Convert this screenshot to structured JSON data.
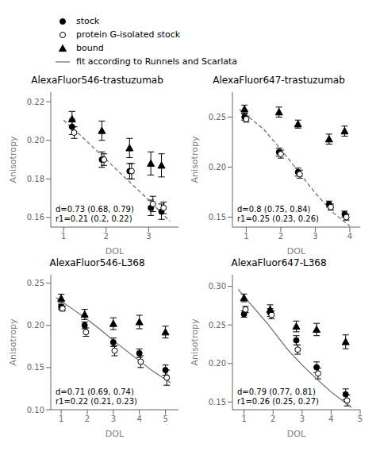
{
  "chart_data": [
    {
      "type": "scatter",
      "title": "AlexaFluor546-trastuzumab",
      "x_label": "DOL",
      "y_label": "Anisotropy",
      "xlim": [
        0.7,
        3.7
      ],
      "ylim": [
        0.155,
        0.225
      ],
      "xticks": [
        1,
        2,
        3
      ],
      "yticks": [
        0.16,
        0.18,
        {
          "value": 0.2,
          "label": "0.20"
        },
        0.22
      ],
      "annotation": "d=0.73 (0.68, 0.79)\nr1=0.21 (0.2, 0.22)",
      "series": [
        {
          "name": "stock",
          "type": "scatter",
          "marker": "circle",
          "color": "black",
          "x": [
            1.2,
            1.9,
            2.55,
            3.05,
            3.3
          ],
          "values": [
            0.207,
            0.19,
            0.184,
            0.165,
            0.163
          ],
          "errors": [
            0.004,
            0.004,
            0.004,
            0.004,
            0.004
          ]
        },
        {
          "name": "protein G-isolated stock",
          "type": "scatter",
          "marker": "open_circle",
          "color": "black",
          "x": [
            1.25,
            1.95,
            2.6,
            3.1,
            3.35
          ],
          "values": [
            0.204,
            0.19,
            0.184,
            0.167,
            0.165
          ],
          "errors": [
            0.003,
            0.003,
            0.004,
            0.004,
            0.003
          ]
        },
        {
          "name": "bound",
          "type": "scatter",
          "marker": "triangle",
          "color": "black",
          "x": [
            1.2,
            1.9,
            2.55,
            3.05,
            3.3
          ],
          "values": [
            0.211,
            0.205,
            0.196,
            0.188,
            0.187
          ],
          "errors": [
            0.004,
            0.005,
            0.005,
            0.006,
            0.006
          ]
        },
        {
          "name": "fit according to Runnels and Scarlata",
          "type": "line",
          "line_style": "dashed",
          "color": "dimgray",
          "x": [
            1.0,
            1.5,
            2.0,
            2.5,
            3.0,
            3.5
          ],
          "values": [
            0.2105,
            0.2005,
            0.19,
            0.1795,
            0.169,
            0.158
          ]
        }
      ]
    },
    {
      "type": "scatter",
      "title": "AlexaFluor647-trastuzumab",
      "x_label": "DOL",
      "y_label": "Anisotropy",
      "xlim": [
        0.6,
        4.3
      ],
      "ylim": [
        0.14,
        0.275
      ],
      "xticks": [
        1,
        2,
        3,
        4
      ],
      "yticks": [
        0.15,
        {
          "value": 0.2,
          "label": "0.20"
        },
        0.25
      ],
      "annotation": "d=0.8 (0.75, 0.84)\nr1=0.25 (0.23, 0.26)",
      "series": [
        {
          "name": "stock",
          "type": "scatter",
          "marker": "circle",
          "color": "black",
          "x": [
            0.95,
            1.95,
            2.5,
            3.4,
            3.85
          ],
          "values": [
            0.25,
            0.215,
            0.195,
            0.163,
            0.153
          ],
          "errors": [
            0.003,
            0.004,
            0.004,
            0.003,
            0.003
          ]
        },
        {
          "name": "protein G-isolated stock",
          "type": "scatter",
          "marker": "open_circle",
          "color": "black",
          "x": [
            1.0,
            2.0,
            2.55,
            3.45,
            3.9
          ],
          "values": [
            0.248,
            0.213,
            0.193,
            0.16,
            0.15
          ],
          "errors": [
            0.003,
            0.004,
            0.004,
            0.003,
            0.003
          ]
        },
        {
          "name": "bound",
          "type": "scatter",
          "marker": "triangle",
          "color": "black",
          "x": [
            0.95,
            1.95,
            2.5,
            3.4,
            3.85
          ],
          "values": [
            0.258,
            0.255,
            0.243,
            0.228,
            0.236
          ],
          "errors": [
            0.004,
            0.005,
            0.004,
            0.005,
            0.005
          ]
        },
        {
          "name": "fit according to Runnels and Scarlata",
          "type": "line",
          "line_style": "dashed",
          "color": "dimgray",
          "x": [
            0.8,
            1.5,
            2.0,
            2.5,
            3.0,
            3.5,
            4.0
          ],
          "values": [
            0.258,
            0.238,
            0.218,
            0.196,
            0.174,
            0.155,
            0.141
          ]
        }
      ]
    },
    {
      "type": "scatter",
      "title": "AlexaFluor546-L368",
      "x_label": "DOL",
      "y_label": "Anisotropy",
      "xlim": [
        0.6,
        5.5
      ],
      "ylim": [
        0.1,
        0.26
      ],
      "xticks": [
        1,
        2,
        3,
        4,
        5
      ],
      "yticks": [
        {
          "value": 0.1,
          "label": "0.10"
        },
        0.15,
        {
          "value": 0.2,
          "label": "0.20"
        },
        0.25
      ],
      "annotation": "d=0.71 (0.69, 0.74)\nr1=0.22 (0.21, 0.23)",
      "series": [
        {
          "name": "stock",
          "type": "scatter",
          "marker": "circle",
          "color": "black",
          "x": [
            1.0,
            1.9,
            3.0,
            4.0,
            5.0
          ],
          "values": [
            0.222,
            0.2,
            0.18,
            0.167,
            0.147
          ],
          "errors": [
            0.003,
            0.004,
            0.005,
            0.005,
            0.006
          ]
        },
        {
          "name": "protein G-isolated stock",
          "type": "scatter",
          "marker": "open_circle",
          "color": "black",
          "x": [
            1.05,
            1.95,
            3.05,
            4.05,
            5.05
          ],
          "values": [
            0.22,
            0.192,
            0.17,
            0.157,
            0.138
          ],
          "errors": [
            0.003,
            0.005,
            0.006,
            0.007,
            0.009
          ]
        },
        {
          "name": "bound",
          "type": "scatter",
          "marker": "triangle",
          "color": "black",
          "x": [
            1.0,
            1.9,
            3.0,
            4.0,
            5.0
          ],
          "values": [
            0.232,
            0.213,
            0.202,
            0.204,
            0.192
          ],
          "errors": [
            0.005,
            0.006,
            0.007,
            0.008,
            0.007
          ]
        },
        {
          "name": "fit according to Runnels and Scarlata",
          "type": "line",
          "line_style": "solid",
          "color": "dimgray",
          "x": [
            0.8,
            1.5,
            2.0,
            2.5,
            3.0,
            3.5,
            4.0,
            4.5,
            5.2
          ],
          "values": [
            0.233,
            0.218,
            0.207,
            0.195,
            0.182,
            0.17,
            0.158,
            0.146,
            0.132
          ]
        }
      ]
    },
    {
      "type": "scatter",
      "title": "AlexaFluor647-L368",
      "x_label": "DOL",
      "y_label": "Anisotropy",
      "xlim": [
        0.6,
        5.0
      ],
      "ylim": [
        0.14,
        0.315
      ],
      "xticks": [
        1,
        2,
        3,
        4,
        5
      ],
      "yticks": [
        0.15,
        {
          "value": 0.2,
          "label": "0.20"
        },
        0.25,
        {
          "value": 0.3,
          "label": "0.30"
        }
      ],
      "annotation": "d=0.79 (0.77, 0.81)\nr1=0.26 (0.25, 0.27)",
      "series": [
        {
          "name": "stock",
          "type": "scatter",
          "marker": "circle",
          "color": "black",
          "x": [
            1.0,
            1.9,
            2.8,
            3.5,
            4.5
          ],
          "values": [
            0.264,
            0.266,
            0.23,
            0.195,
            0.16
          ],
          "errors": [
            0.004,
            0.005,
            0.006,
            0.007,
            0.007
          ]
        },
        {
          "name": "protein G-isolated stock",
          "type": "scatter",
          "marker": "open_circle",
          "color": "black",
          "x": [
            1.05,
            1.95,
            2.85,
            3.55,
            4.55
          ],
          "values": [
            0.27,
            0.263,
            0.218,
            0.187,
            0.152
          ],
          "errors": [
            0.004,
            0.005,
            0.006,
            0.007,
            0.007
          ]
        },
        {
          "name": "bound",
          "type": "scatter",
          "marker": "triangle",
          "color": "black",
          "x": [
            1.0,
            1.9,
            2.8,
            3.5,
            4.5
          ],
          "values": [
            0.285,
            0.27,
            0.248,
            0.244,
            0.228
          ],
          "errors": [
            0.005,
            0.006,
            0.007,
            0.008,
            0.009
          ]
        },
        {
          "name": "fit according to Runnels and Scarlata",
          "type": "line",
          "line_style": "solid",
          "color": "dimgray",
          "x": [
            0.8,
            1.2,
            1.8,
            2.5,
            3.0,
            3.5,
            4.0,
            4.7
          ],
          "values": [
            0.296,
            0.278,
            0.252,
            0.218,
            0.198,
            0.18,
            0.163,
            0.143
          ]
        }
      ]
    }
  ]
}
